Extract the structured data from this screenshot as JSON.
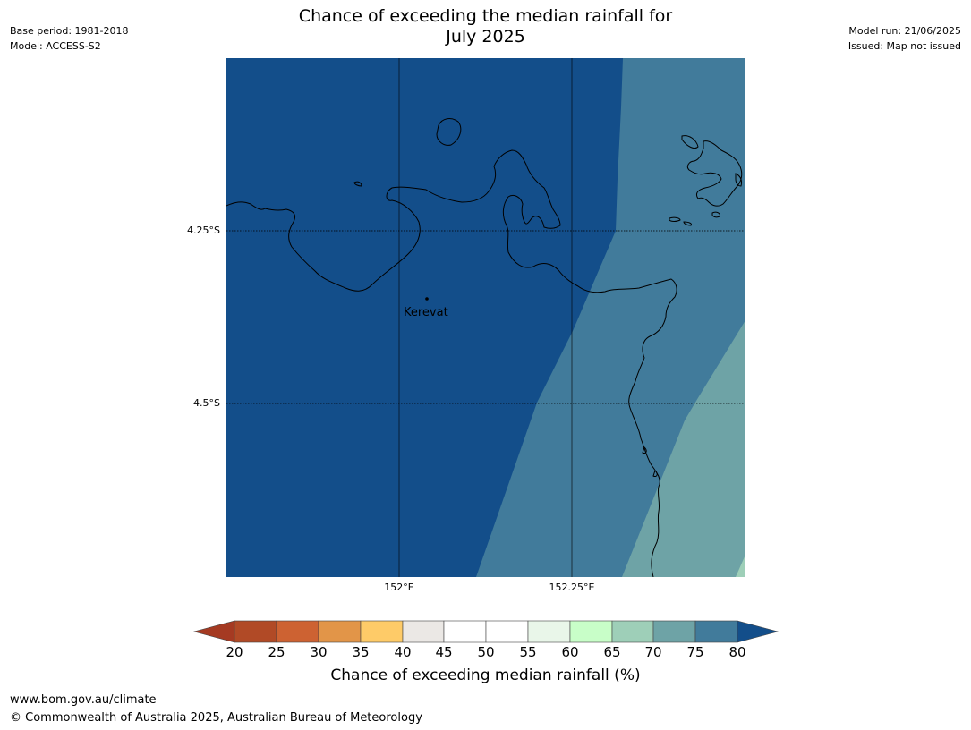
{
  "header": {
    "title_line1": "Chance of exceeding the median rainfall for",
    "title_line2": "July 2025",
    "base_period": "Base period: 1981-2018",
    "model": "Model: ACCESS-S2",
    "model_run": "Model run: 21/06/2025",
    "issued": "Issued: Map not issued"
  },
  "map": {
    "latitude_labels": [
      "4.25°S",
      "4.5°S"
    ],
    "longitude_labels": [
      "152°E",
      "152.25°E"
    ],
    "place_label": "Kerevat",
    "fill_colors": {
      "band_80_plus": "#134e8a",
      "band_75_80": "#417b9b",
      "band_70_75": "#6ea3a6",
      "band_65_70": "#9ecfb8"
    }
  },
  "colorbar": {
    "ticks": [
      "20",
      "25",
      "30",
      "35",
      "40",
      "45",
      "50",
      "55",
      "60",
      "65",
      "70",
      "75",
      "80"
    ],
    "label": "Chance of exceeding median rainfall (%)",
    "colors": {
      "below_20": "#a53a22",
      "c20_25": "#b14a26",
      "c25_30": "#cd6232",
      "c30_35": "#e29548",
      "c35_40": "#fecb68",
      "c40_45": "#ebe8e5",
      "c45_50": "#ffffff",
      "c50_55": "#ffffff",
      "c55_60": "#e9f6e9",
      "c60_65": "#c8fec8",
      "c65_70": "#9ecfb8",
      "c70_75": "#6ea3a6",
      "c75_80": "#417b9b",
      "above_80": "#134e8a"
    }
  },
  "footer": {
    "url": "www.bom.gov.au/climate",
    "copyright": "© Commonwealth of Australia 2025, Australian Bureau of Meteorology"
  }
}
